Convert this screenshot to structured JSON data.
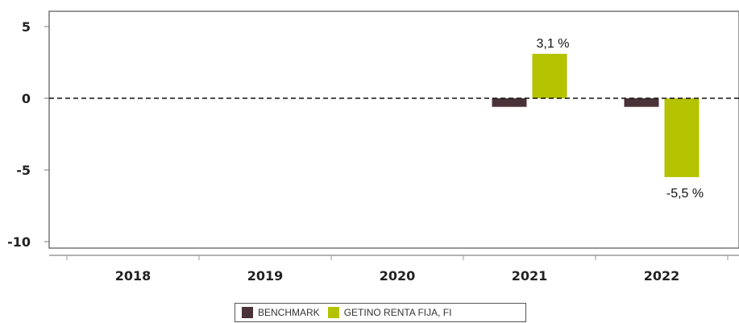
{
  "chart_data": {
    "type": "bar",
    "categories": [
      "2018",
      "2019",
      "2020",
      "2021",
      "2022"
    ],
    "series": [
      {
        "name": "BENCHMARK",
        "color": "#4a3338",
        "values": [
          null,
          null,
          null,
          -0.6,
          -0.6
        ]
      },
      {
        "name": "GETINO RENTA FIJA, FI",
        "color": "#b5c200",
        "values": [
          null,
          null,
          null,
          3.1,
          -5.5
        ]
      }
    ],
    "data_labels": [
      {
        "category": "2021",
        "series": "GETINO RENTA FIJA, FI",
        "text": "3,1 %"
      },
      {
        "category": "2022",
        "series": "GETINO RENTA FIJA, FI",
        "text": "-5,5 %"
      }
    ],
    "yticks": [
      5,
      0,
      -5,
      -10
    ],
    "ytick_labels": [
      "5",
      "0",
      "-5",
      "-10"
    ],
    "ylim": [
      -10.5,
      6
    ],
    "grid": false,
    "zero_line": "dashed",
    "legend_position": "bottom"
  }
}
